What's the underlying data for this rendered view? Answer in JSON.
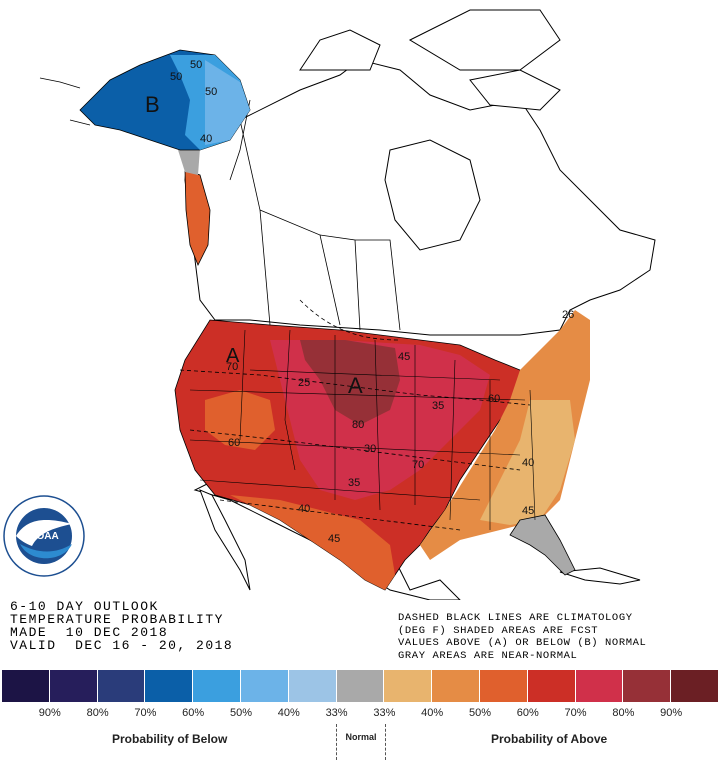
{
  "header": {
    "line1": "6-10 DAY OUTLOOK",
    "line2": "TEMPERATURE PROBABILITY",
    "line3": "MADE  10 DEC 2018",
    "line4": "VALID  DEC 16 - 20, 2018"
  },
  "notes": {
    "line1": "DASHED BLACK LINES ARE CLIMATOLOGY",
    "line2": "(DEG F) SHADED AREAS ARE FCST",
    "line3": "VALUES ABOVE (A) OR BELOW (B) NORMAL",
    "line4": "GRAY AREAS ARE NEAR-NORMAL"
  },
  "logo": {
    "text": "NOAA",
    "ring_text": "NATIONAL OCEANIC AND ATMOSPHERIC ADMINISTRATION · U.S. DEPARTMENT OF COMMERCE"
  },
  "legend": {
    "colors": [
      "#1c1445",
      "#261e5b",
      "#2a3c7a",
      "#0b5fa8",
      "#3b9fdf",
      "#6cb3e8",
      "#9cc4e6",
      "#a9a9a9",
      "#e8b46e",
      "#e58c45",
      "#e0602d",
      "#cc2f26",
      "#d0304a",
      "#963037",
      "#6b1f24"
    ],
    "ticks": [
      "90%",
      "80%",
      "70%",
      "60%",
      "50%",
      "40%",
      "33%",
      "33%",
      "40%",
      "50%",
      "60%",
      "70%",
      "80%",
      "90%"
    ],
    "below_label": "Probability of Below",
    "normal_label": "Normal",
    "above_label": "Probability of Above"
  },
  "map": {
    "alaska_marker": "B",
    "west_marker": "A",
    "plains_marker": "A",
    "contour_labels": [
      "50",
      "50",
      "40",
      "50",
      "70",
      "60",
      "25",
      "45",
      "80",
      "35",
      "30",
      "70",
      "60",
      "40",
      "35",
      "40",
      "45",
      "45",
      "26"
    ]
  }
}
